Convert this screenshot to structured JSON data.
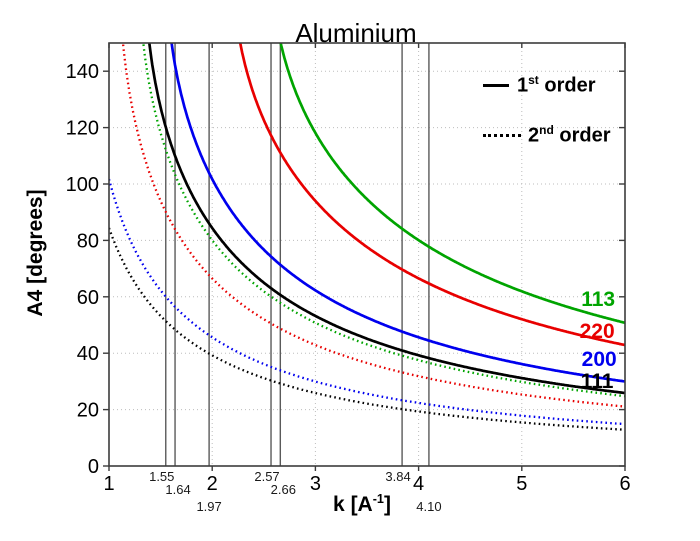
{
  "window": {
    "background": "#ffffff"
  },
  "chart_data": {
    "type": "line",
    "title": "Aluminium",
    "xlabel": {
      "prefix": "k [A",
      "sup": "-1",
      "suffix": "]"
    },
    "ylabel": "A4 [degrees]",
    "xlim": [
      1,
      6
    ],
    "ylim": [
      0,
      150
    ],
    "x_ticks": [
      1,
      2,
      3,
      4,
      5,
      6
    ],
    "y_ticks": [
      0,
      20,
      40,
      60,
      80,
      100,
      120,
      140
    ],
    "grid": true,
    "axis_color": "#3c3c3c",
    "grid_color": "#bdbdbd",
    "model": "A4_degrees = 2*asin(tau/(2*order*k))*180/pi ; tau in A^-1",
    "legend": {
      "position": "top-right",
      "items": [
        {
          "base": "1",
          "sup": "st",
          "rest": " order",
          "style": "solid",
          "color": "#000000"
        },
        {
          "base": "2",
          "sup": "nd",
          "rest": " order",
          "style": "dotted",
          "color": "#000000"
        }
      ]
    },
    "series": [
      {
        "id": "111-order1",
        "hkl": "111",
        "order": 1,
        "tau": 2.687,
        "color": "#000000",
        "style": "solid",
        "label": {
          "text": "111",
          "k": 5.73,
          "a4": 30.1
        },
        "samples": [
          [
            1.4,
            147.3
          ],
          [
            1.5,
            127.2
          ],
          [
            2,
            84.4
          ],
          [
            2.5,
            65.0
          ],
          [
            3,
            53.2
          ],
          [
            3.5,
            45.1
          ],
          [
            4,
            39.3
          ],
          [
            4.5,
            34.8
          ],
          [
            5,
            31.2
          ],
          [
            5.5,
            28.3
          ],
          [
            6,
            25.9
          ]
        ]
      },
      {
        "id": "200-order1",
        "hkl": "200",
        "order": 1,
        "tau": 3.103,
        "color": "#0000ee",
        "style": "solid",
        "label": {
          "text": "200",
          "k": 5.75,
          "a4": 37.9
        },
        "samples": [
          [
            1.65,
            140.2
          ],
          [
            2,
            101.8
          ],
          [
            2.5,
            76.7
          ],
          [
            3,
            62.3
          ],
          [
            3.5,
            52.6
          ],
          [
            4,
            45.6
          ],
          [
            4.5,
            40.3
          ],
          [
            5,
            36.2
          ],
          [
            5.5,
            32.8
          ],
          [
            6,
            30.0
          ]
        ]
      },
      {
        "id": "220-order1",
        "hkl": "220",
        "order": 1,
        "tau": 4.388,
        "color": "#e80000",
        "style": "solid",
        "label": {
          "text": "220",
          "k": 5.73,
          "a4": 47.9
        },
        "samples": [
          [
            2.3,
            145.1
          ],
          [
            2.5,
            122.7
          ],
          [
            3,
            94.0
          ],
          [
            3.5,
            77.6
          ],
          [
            4,
            66.5
          ],
          [
            4.5,
            58.4
          ],
          [
            5,
            52.1
          ],
          [
            5.5,
            47.0
          ],
          [
            6,
            42.9
          ]
        ]
      },
      {
        "id": "113-order1",
        "hkl": "113",
        "order": 1,
        "tau": 5.146,
        "color": "#00a400",
        "style": "solid",
        "label": {
          "text": "113",
          "k": 5.74,
          "a4": 59.2
        },
        "samples": [
          [
            2.7,
            144.6
          ],
          [
            3,
            118.1
          ],
          [
            3.5,
            94.6
          ],
          [
            4,
            80.1
          ],
          [
            4.5,
            69.8
          ],
          [
            5,
            61.9
          ],
          [
            5.5,
            55.8
          ],
          [
            6,
            50.8
          ]
        ]
      },
      {
        "id": "111-order2",
        "hkl": "111",
        "order": 2,
        "tau": 2.687,
        "color": "#000000",
        "style": "dotted",
        "label": null,
        "samples": [
          [
            1,
            84.4
          ],
          [
            1.5,
            53.2
          ],
          [
            2,
            39.3
          ],
          [
            2.5,
            31.2
          ],
          [
            3,
            25.9
          ],
          [
            3.5,
            22.1
          ],
          [
            4,
            19.3
          ],
          [
            4.5,
            17.2
          ],
          [
            5,
            15.4
          ],
          [
            5.5,
            14.0
          ],
          [
            6,
            12.9
          ]
        ]
      },
      {
        "id": "200-order2",
        "hkl": "200",
        "order": 2,
        "tau": 3.103,
        "color": "#0000ee",
        "style": "dotted",
        "label": null,
        "samples": [
          [
            1,
            101.8
          ],
          [
            1.5,
            62.3
          ],
          [
            2,
            45.6
          ],
          [
            2.5,
            36.2
          ],
          [
            3,
            30.0
          ],
          [
            3.5,
            25.6
          ],
          [
            4,
            22.4
          ],
          [
            4.5,
            19.9
          ],
          [
            5,
            17.9
          ],
          [
            5.5,
            16.2
          ],
          [
            6,
            14.9
          ]
        ]
      },
      {
        "id": "220-order2",
        "hkl": "220",
        "order": 2,
        "tau": 4.388,
        "color": "#e80000",
        "style": "dotted",
        "label": null,
        "samples": [
          [
            1.2,
            132.2
          ],
          [
            1.5,
            94.0
          ],
          [
            2,
            66.5
          ],
          [
            2.5,
            52.1
          ],
          [
            3,
            42.9
          ],
          [
            3.5,
            36.5
          ],
          [
            4,
            31.8
          ],
          [
            4.5,
            28.2
          ],
          [
            5,
            25.3
          ],
          [
            5.5,
            23.0
          ],
          [
            6,
            21.1
          ]
        ]
      },
      {
        "id": "113-order2",
        "hkl": "113",
        "order": 2,
        "tau": 5.146,
        "color": "#00a400",
        "style": "dotted",
        "label": null,
        "samples": [
          [
            1.4,
            133.6
          ],
          [
            1.5,
            118.1
          ],
          [
            2,
            80.1
          ],
          [
            2.5,
            61.9
          ],
          [
            3,
            50.8
          ],
          [
            3.5,
            43.1
          ],
          [
            4,
            37.5
          ],
          [
            4.5,
            33.2
          ],
          [
            5,
            29.8
          ],
          [
            5.5,
            27.1
          ],
          [
            6,
            24.8
          ]
        ]
      }
    ],
    "vlines": {
      "color": "#5a5a5a",
      "items": [
        {
          "x": 1.55,
          "label": "1.55",
          "row": 0
        },
        {
          "x": 1.64,
          "label": "1.64",
          "row": 1
        },
        {
          "x": 1.97,
          "label": "1.97",
          "row": 2
        },
        {
          "x": 2.57,
          "label": "2.57",
          "row": 0
        },
        {
          "x": 2.66,
          "label": "2.66",
          "row": 1
        },
        {
          "x": 3.84,
          "label": "3.84",
          "row": 0
        },
        {
          "x": 4.1,
          "label": "4.10",
          "row": 2
        }
      ]
    }
  }
}
